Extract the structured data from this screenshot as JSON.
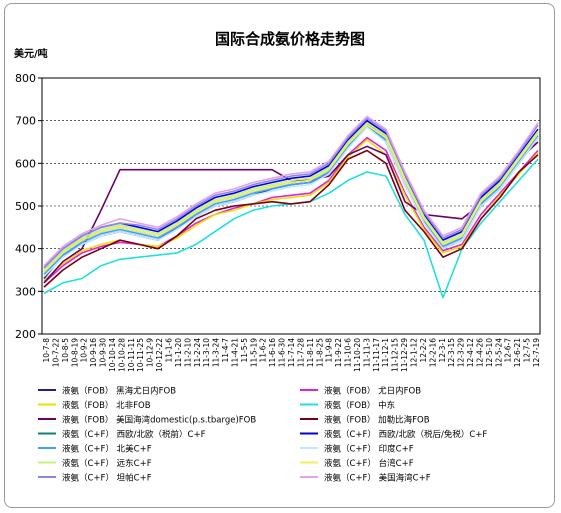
{
  "chart_data": {
    "type": "line",
    "title": "国际合成氨价格走势图",
    "ylabel": "美元/吨",
    "xlabel": "",
    "ylim": [
      200,
      800
    ],
    "yticks": [
      200,
      300,
      400,
      500,
      600,
      700,
      800
    ],
    "grid": "horizontal-dashed",
    "legend_position": "bottom",
    "x": [
      "10-7-8",
      "10-8-5",
      "10-9-2",
      "10-9-30",
      "10-10-28",
      "10-11-25",
      "10-12-22",
      "11-1-20",
      "11-2-24",
      "11-3-24",
      "11-4-21",
      "11-5-19",
      "11-6-16",
      "11-7-14",
      "11-8-11",
      "11-9-8",
      "11-10-6",
      "11-11-3",
      "11-12-1",
      "11-12-29",
      "12-2-2",
      "12-3-1",
      "12-3-29",
      "12-4-26",
      "12-5-24",
      "12-6-21",
      "12-7-19"
    ],
    "x_tick_labels": [
      "10-7-8",
      "10-7-22",
      "10-8-5",
      "10-8-19",
      "10-9-2",
      "10-9-16",
      "10-9-30",
      "10-10-14",
      "10-10-28",
      "10-11-11",
      "10-11-25",
      "10-12-9",
      "10-12-22",
      "11-1-6",
      "11-1-20",
      "11-2-10",
      "11-2-24",
      "11-3-10",
      "11-3-24",
      "11-4-7",
      "11-4-21",
      "11-5-5",
      "11-5-19",
      "11-6-2",
      "11-6-16",
      "11-6-30",
      "11-7-14",
      "11-7-28",
      "11-8-11",
      "11-8-25",
      "11-9-8",
      "11-9-22",
      "11-10-6",
      "11-10-20",
      "11-11-3",
      "11-11-17",
      "11-12-1",
      "11-12-15",
      "11-12-29",
      "12-1-12",
      "12-2-2",
      "12-2-16",
      "12-3-1",
      "12-3-15",
      "12-3-29",
      "12-4-12",
      "12-4-26",
      "12-5-10",
      "12-5-24",
      "12-6-7",
      "12-6-21",
      "12-7-5",
      "12-7-19"
    ],
    "series": [
      {
        "name": "液氨（FOB） 黑海尤日内FOB",
        "color": "#1f1f8f",
        "values": [
          330,
          385,
          410,
          430,
          440,
          430,
          420,
          450,
          475,
          500,
          510,
          525,
          540,
          550,
          555,
          575,
          640,
          690,
          650,
          550,
          465,
          400,
          420,
          500,
          540,
          600,
          660
        ]
      },
      {
        "name": "液氨（FOB） 尤日内FOB",
        "color": "#e020e0",
        "values": [
          320,
          360,
          390,
          405,
          415,
          410,
          405,
          430,
          460,
          480,
          495,
          505,
          520,
          525,
          530,
          560,
          620,
          660,
          630,
          530,
          450,
          395,
          410,
          480,
          530,
          580,
          630
        ]
      },
      {
        "name": "液氨（FOB） 北非FOB",
        "color": "#e8e000",
        "values": [
          325,
          365,
          395,
          410,
          420,
          410,
          405,
          425,
          455,
          480,
          490,
          505,
          515,
          520,
          525,
          555,
          615,
          655,
          620,
          525,
          445,
          390,
          405,
          470,
          525,
          575,
          625
        ]
      },
      {
        "name": "液氨（FOB） 中东",
        "color": "#20e0e0",
        "values": [
          295,
          320,
          330,
          360,
          375,
          380,
          385,
          390,
          410,
          440,
          470,
          490,
          500,
          505,
          510,
          530,
          560,
          580,
          570,
          480,
          420,
          285,
          400,
          460,
          510,
          560,
          610
        ]
      },
      {
        "name": "液氨（FOB） 美国海湾domestic(p.s.tbarge)FOB",
        "color": "#6a006a",
        "values": [
          320,
          370,
          400,
          490,
          585,
          585,
          585,
          585,
          585,
          585,
          585,
          585,
          585,
          560,
          560,
          570,
          620,
          640,
          620,
          510,
          480,
          475,
          470,
          505,
          560,
          610,
          650
        ]
      },
      {
        "name": "液氨（FOB） 加勒比海FOB",
        "color": "#7a0010",
        "values": [
          310,
          350,
          380,
          400,
          420,
          410,
          400,
          430,
          470,
          490,
          500,
          505,
          510,
          505,
          510,
          550,
          610,
          630,
          600,
          490,
          440,
          380,
          400,
          470,
          520,
          580,
          620
        ]
      },
      {
        "name": "液氨（C+F） 西欧/北欧（税前）C+F",
        "color": "#108070",
        "values": [
          345,
          390,
          420,
          440,
          450,
          440,
          430,
          455,
          485,
          510,
          520,
          535,
          545,
          555,
          560,
          585,
          645,
          695,
          660,
          560,
          470,
          410,
          430,
          510,
          550,
          610,
          670
        ]
      },
      {
        "name": "液氨（C+F） 西欧/北欧（税后/免税）C+F",
        "color": "#0000e0",
        "values": [
          355,
          400,
          430,
          450,
          460,
          450,
          440,
          465,
          495,
          520,
          530,
          545,
          555,
          565,
          570,
          595,
          655,
          700,
          670,
          570,
          480,
          420,
          440,
          520,
          560,
          620,
          680
        ]
      },
      {
        "name": "液氨（C+F） 北美C+F",
        "color": "#40a0ff",
        "values": [
          340,
          385,
          415,
          435,
          445,
          435,
          425,
          450,
          480,
          505,
          515,
          530,
          540,
          550,
          555,
          580,
          640,
          690,
          655,
          555,
          465,
          405,
          425,
          505,
          545,
          605,
          665
        ]
      },
      {
        "name": "液氨（C+F） 印度C+F",
        "color": "#c0e8ff",
        "values": [
          335,
          380,
          410,
          430,
          440,
          430,
          420,
          445,
          475,
          500,
          510,
          525,
          535,
          545,
          550,
          575,
          635,
          685,
          650,
          550,
          460,
          400,
          420,
          500,
          540,
          600,
          660
        ]
      },
      {
        "name": "液氨（C+F） 远东C+F",
        "color": "#c8f080",
        "values": [
          350,
          395,
          425,
          445,
          455,
          445,
          435,
          460,
          490,
          515,
          525,
          540,
          550,
          560,
          565,
          590,
          650,
          695,
          665,
          565,
          475,
          415,
          435,
          515,
          555,
          615,
          675
        ]
      },
      {
        "name": "液氨（C+F） 台湾C+F",
        "color": "#f0f060",
        "values": [
          345,
          390,
          420,
          440,
          450,
          440,
          430,
          455,
          485,
          510,
          520,
          535,
          545,
          555,
          560,
          585,
          645,
          690,
          660,
          560,
          470,
          410,
          430,
          510,
          550,
          610,
          670
        ]
      },
      {
        "name": "液氨（C+F） 坦帕C+F",
        "color": "#8888e8",
        "values": [
          355,
          400,
          430,
          450,
          460,
          455,
          445,
          470,
          500,
          525,
          535,
          550,
          560,
          570,
          575,
          600,
          660,
          705,
          675,
          575,
          485,
          425,
          445,
          525,
          565,
          625,
          690
        ]
      },
      {
        "name": "液氨（C+F） 美国海湾C+F",
        "color": "#e8a0e8",
        "values": [
          360,
          405,
          435,
          455,
          470,
          460,
          450,
          475,
          505,
          530,
          540,
          555,
          565,
          575,
          580,
          605,
          665,
          710,
          680,
          580,
          490,
          430,
          450,
          530,
          570,
          630,
          695
        ]
      }
    ]
  }
}
